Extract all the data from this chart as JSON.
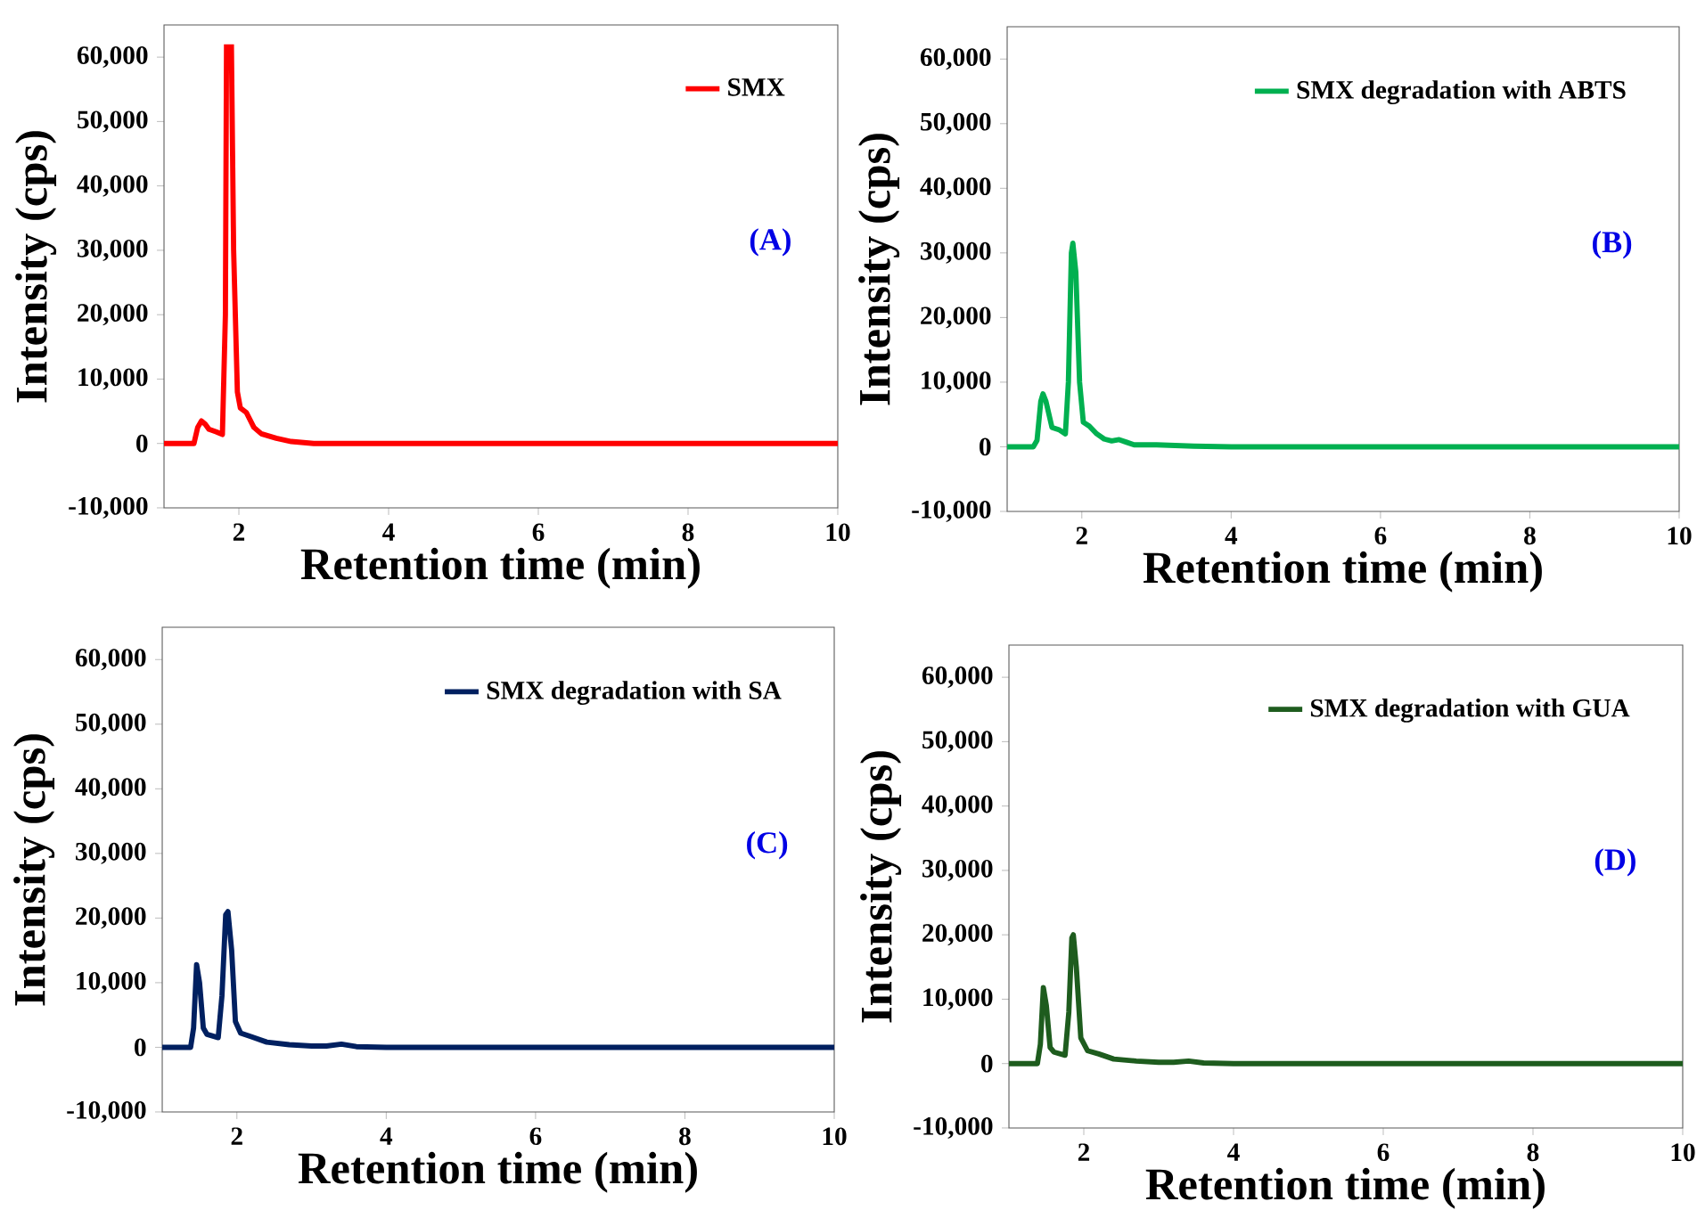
{
  "chart_data": [
    {
      "type": "line",
      "xlabel": "Retention time (min)",
      "ylabel": "Intensity (cps)",
      "annotations": [
        "(A)"
      ],
      "legend": "top right",
      "marker": "none",
      "line_style": "solid",
      "grid": false,
      "xlim": [
        1,
        10
      ],
      "ylim": [
        -10000,
        65000
      ],
      "xticks": [
        2,
        4,
        6,
        8,
        10
      ],
      "yticks": [
        {
          "value": -10000,
          "label": "-10,000"
        },
        0,
        {
          "value": 10000,
          "label": "10,000"
        },
        {
          "value": 20000,
          "label": "20,000"
        },
        {
          "value": 30000,
          "label": "30,000"
        },
        {
          "value": 40000,
          "label": "40,000"
        },
        {
          "value": 50000,
          "label": "50,000"
        },
        {
          "value": 60000,
          "label": "60,000"
        }
      ],
      "series": [
        {
          "name": "SMX",
          "color": "#ff0000",
          "x": [
            1.0,
            1.4,
            1.45,
            1.5,
            1.55,
            1.6,
            1.7,
            1.78,
            1.82,
            1.835,
            1.86,
            1.9,
            1.93,
            1.98,
            2.02,
            2.1,
            2.2,
            2.3,
            2.5,
            2.7,
            3.0,
            4.0,
            10.0
          ],
          "values": [
            0,
            0,
            2500,
            3500,
            3000,
            2200,
            1800,
            1400,
            20000,
            62000,
            null,
            62000,
            30000,
            8000,
            5500,
            4800,
            2500,
            1500,
            800,
            300,
            0,
            0,
            0
          ]
        }
      ]
    },
    {
      "type": "line",
      "xlabel": "Retention time (min)",
      "ylabel": "Intensity (cps)",
      "annotations": [
        "(B)"
      ],
      "legend": "top right",
      "marker": "none",
      "line_style": "solid",
      "grid": false,
      "xlim": [
        1,
        10
      ],
      "ylim": [
        -10000,
        65000
      ],
      "xticks": [
        2,
        4,
        6,
        8,
        10
      ],
      "yticks": [
        {
          "value": -10000,
          "label": "-10,000"
        },
        0,
        {
          "value": 10000,
          "label": "10,000"
        },
        {
          "value": 20000,
          "label": "20,000"
        },
        {
          "value": 30000,
          "label": "30,000"
        },
        {
          "value": 40000,
          "label": "40,000"
        },
        {
          "value": 50000,
          "label": "50,000"
        },
        {
          "value": 60000,
          "label": "60,000"
        }
      ],
      "series": [
        {
          "name": "SMX degradation with ABTS",
          "color": "#00b050",
          "x": [
            1.0,
            1.35,
            1.4,
            1.45,
            1.48,
            1.52,
            1.6,
            1.7,
            1.78,
            1.82,
            1.86,
            1.88,
            1.92,
            1.97,
            2.02,
            2.1,
            2.2,
            2.3,
            2.4,
            2.5,
            2.6,
            2.7,
            3.0,
            3.5,
            4.0,
            10.0
          ],
          "values": [
            0,
            0,
            1000,
            7000,
            8200,
            7000,
            3000,
            2600,
            2000,
            10000,
            30000,
            31500,
            27000,
            10000,
            3800,
            3200,
            2000,
            1200,
            900,
            1100,
            700,
            300,
            300,
            100,
            0,
            0
          ]
        }
      ]
    },
    {
      "type": "line",
      "xlabel": "Retention time (min)",
      "ylabel": "Intensity (cps)",
      "annotations": [
        "(C)"
      ],
      "legend": "top right",
      "marker": "none",
      "line_style": "solid",
      "grid": false,
      "xlim": [
        1,
        10
      ],
      "ylim": [
        -10000,
        65000
      ],
      "xticks": [
        2,
        4,
        6,
        8,
        10
      ],
      "yticks": [
        {
          "value": -10000,
          "label": "-10,000"
        },
        0,
        {
          "value": 10000,
          "label": "10,000"
        },
        {
          "value": 20000,
          "label": "20,000"
        },
        {
          "value": 30000,
          "label": "30,000"
        },
        {
          "value": 40000,
          "label": "40,000"
        },
        {
          "value": 50000,
          "label": "50,000"
        },
        {
          "value": 60000,
          "label": "60,000"
        }
      ],
      "series": [
        {
          "name": "SMX degradation with SA",
          "color": "#002060",
          "x": [
            1.0,
            1.38,
            1.42,
            1.46,
            1.5,
            1.55,
            1.6,
            1.75,
            1.8,
            1.85,
            1.88,
            1.93,
            1.98,
            2.05,
            2.2,
            2.4,
            2.7,
            3.0,
            3.2,
            3.4,
            3.6,
            4.0,
            10.0
          ],
          "values": [
            0,
            0,
            3000,
            12800,
            10000,
            3000,
            2000,
            1500,
            8000,
            20500,
            21000,
            15000,
            4000,
            2200,
            1600,
            800,
            400,
            200,
            200,
            500,
            100,
            0,
            0
          ]
        }
      ]
    },
    {
      "type": "line",
      "xlabel": "Retention time (min)",
      "ylabel": "Intensity (cps)",
      "annotations": [
        "(D)"
      ],
      "legend": "top right",
      "marker": "none",
      "line_style": "solid",
      "grid": false,
      "xlim": [
        1,
        10
      ],
      "ylim": [
        -10000,
        65000
      ],
      "xticks": [
        2,
        4,
        6,
        8,
        10
      ],
      "yticks": [
        {
          "value": -10000,
          "label": "-10,000"
        },
        0,
        {
          "value": 10000,
          "label": "10,000"
        },
        {
          "value": 20000,
          "label": "20,000"
        },
        {
          "value": 30000,
          "label": "30,000"
        },
        {
          "value": 40000,
          "label": "40,000"
        },
        {
          "value": 50000,
          "label": "50,000"
        },
        {
          "value": 60000,
          "label": "60,000"
        }
      ],
      "series": [
        {
          "name": "SMX degradation with GUA",
          "color": "#1e5c1e",
          "x": [
            1.0,
            1.38,
            1.42,
            1.46,
            1.5,
            1.55,
            1.6,
            1.75,
            1.8,
            1.84,
            1.86,
            1.9,
            1.96,
            2.05,
            2.2,
            2.4,
            2.7,
            3.0,
            3.2,
            3.4,
            3.6,
            4.0,
            10.0
          ],
          "values": [
            0,
            0,
            3000,
            11800,
            9000,
            2500,
            1800,
            1300,
            8000,
            19500,
            20000,
            15000,
            4000,
            2000,
            1500,
            700,
            400,
            200,
            200,
            400,
            100,
            0,
            0
          ]
        }
      ]
    }
  ]
}
